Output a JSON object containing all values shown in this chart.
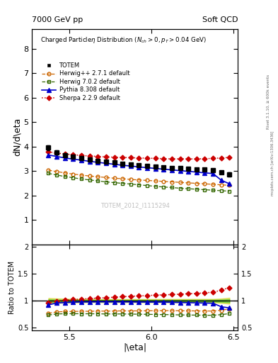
{
  "title_left": "7000 GeV pp",
  "title_right": "Soft QCD",
  "xlabel": "|\\eta|",
  "ylabel_main": "dN/d\\eta",
  "ylabel_ratio": "Ratio to TOTEM",
  "watermark": "TOTEM_2012_I1115294",
  "right_label1": "Rivet 3.1.10, ≥ 600k events",
  "right_label2": "mcplots.cern.ch [arXiv:1306.3436]",
  "eta_values": [
    5.375,
    5.425,
    5.475,
    5.525,
    5.575,
    5.625,
    5.675,
    5.725,
    5.775,
    5.825,
    5.875,
    5.925,
    5.975,
    6.025,
    6.075,
    6.125,
    6.175,
    6.225,
    6.275,
    6.325,
    6.375,
    6.425,
    6.475
  ],
  "totem_y": [
    3.95,
    3.75,
    3.65,
    3.58,
    3.52,
    3.47,
    3.42,
    3.38,
    3.34,
    3.3,
    3.27,
    3.24,
    3.21,
    3.18,
    3.15,
    3.13,
    3.11,
    3.09,
    3.07,
    3.05,
    3.03,
    2.95,
    2.85
  ],
  "totem_err": [
    0.1,
    0.08,
    0.07,
    0.06,
    0.06,
    0.05,
    0.05,
    0.05,
    0.05,
    0.05,
    0.05,
    0.05,
    0.05,
    0.05,
    0.05,
    0.05,
    0.05,
    0.05,
    0.05,
    0.05,
    0.05,
    0.06,
    0.08
  ],
  "herwig271_y": [
    3.03,
    2.97,
    2.92,
    2.87,
    2.83,
    2.79,
    2.76,
    2.73,
    2.7,
    2.68,
    2.65,
    2.63,
    2.61,
    2.59,
    2.57,
    2.55,
    2.53,
    2.51,
    2.49,
    2.47,
    2.45,
    2.43,
    2.41
  ],
  "herwig702_y": [
    2.9,
    2.83,
    2.77,
    2.72,
    2.67,
    2.63,
    2.59,
    2.55,
    2.52,
    2.49,
    2.46,
    2.43,
    2.4,
    2.37,
    2.34,
    2.32,
    2.29,
    2.27,
    2.25,
    2.23,
    2.21,
    2.19,
    2.17
  ],
  "pythia_y": [
    3.65,
    3.59,
    3.53,
    3.48,
    3.44,
    3.39,
    3.35,
    3.31,
    3.27,
    3.23,
    3.2,
    3.16,
    3.13,
    3.1,
    3.07,
    3.04,
    3.01,
    2.98,
    2.95,
    2.92,
    2.89,
    2.62,
    2.47
  ],
  "sherpa_y": [
    3.78,
    3.73,
    3.69,
    3.66,
    3.63,
    3.61,
    3.59,
    3.57,
    3.56,
    3.55,
    3.54,
    3.53,
    3.52,
    3.51,
    3.5,
    3.49,
    3.49,
    3.49,
    3.49,
    3.5,
    3.51,
    3.53,
    3.55
  ],
  "xlim": [
    5.275,
    6.525
  ],
  "ylim_main": [
    0.0,
    8.8
  ],
  "ylim_ratio": [
    0.45,
    2.05
  ],
  "yticks_main": [
    1,
    2,
    3,
    4,
    5,
    6,
    7,
    8
  ],
  "yticks_ratio": [
    0.5,
    1.0,
    1.5,
    2.0
  ],
  "xticks": [
    5.5,
    6.0,
    6.5
  ],
  "totem_color": "#000000",
  "herwig271_color": "#cc6600",
  "herwig702_color": "#336600",
  "pythia_color": "#0000cc",
  "sherpa_color": "#cc0000",
  "band_green": "#00bb00",
  "band_yellow": "#cccc00",
  "band_green_alpha": 0.4,
  "band_yellow_alpha": 0.5
}
